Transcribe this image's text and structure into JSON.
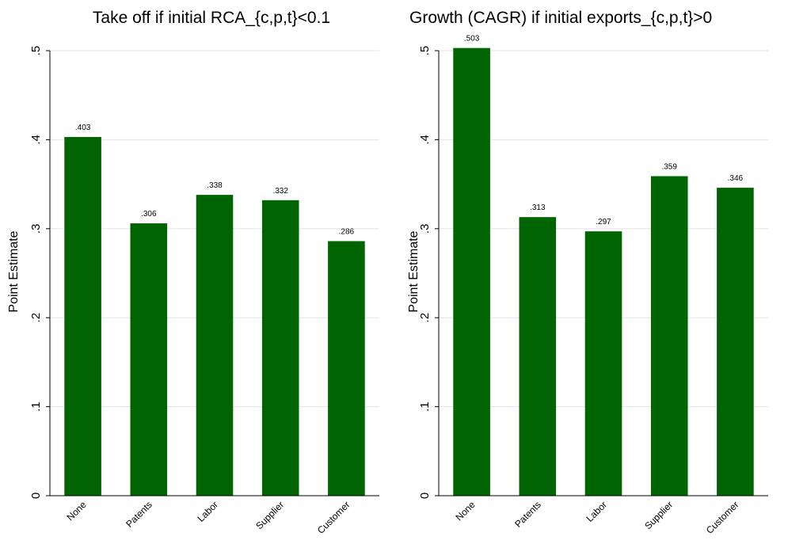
{
  "chart_data": [
    {
      "type": "bar",
      "title": "Take off if initial RCA_{c,p,t}<0.1",
      "ylabel": "Point Estimate",
      "xlabel": "",
      "categories": [
        "None",
        "Patents",
        "Labor",
        "Supplier",
        "Customer"
      ],
      "values": [
        0.403,
        0.306,
        0.338,
        0.332,
        0.286
      ],
      "value_labels": [
        ".403",
        ".306",
        ".338",
        ".332",
        ".286"
      ],
      "yticks": [
        0,
        0.1,
        0.2,
        0.3,
        0.4,
        0.5
      ],
      "ytick_labels": [
        "0",
        ".1",
        ".2",
        ".3",
        ".4",
        ".5"
      ],
      "ylim": [
        0,
        0.5
      ],
      "grid": true,
      "bar_color": "#006400"
    },
    {
      "type": "bar",
      "title": "Growth (CAGR) if initial exports_{c,p,t}>0",
      "ylabel": "Point Estimate",
      "xlabel": "",
      "categories": [
        "None",
        "Patents",
        "Labor",
        "Supplier",
        "Customer"
      ],
      "values": [
        0.503,
        0.313,
        0.297,
        0.359,
        0.346
      ],
      "value_labels": [
        ".503",
        ".313",
        ".297",
        ".359",
        ".346"
      ],
      "yticks": [
        0,
        0.1,
        0.2,
        0.3,
        0.4,
        0.5
      ],
      "ytick_labels": [
        "0",
        ".1",
        ".2",
        ".3",
        ".4",
        ".5"
      ],
      "ylim": [
        0,
        0.5
      ],
      "grid": true,
      "bar_color": "#006400"
    }
  ]
}
